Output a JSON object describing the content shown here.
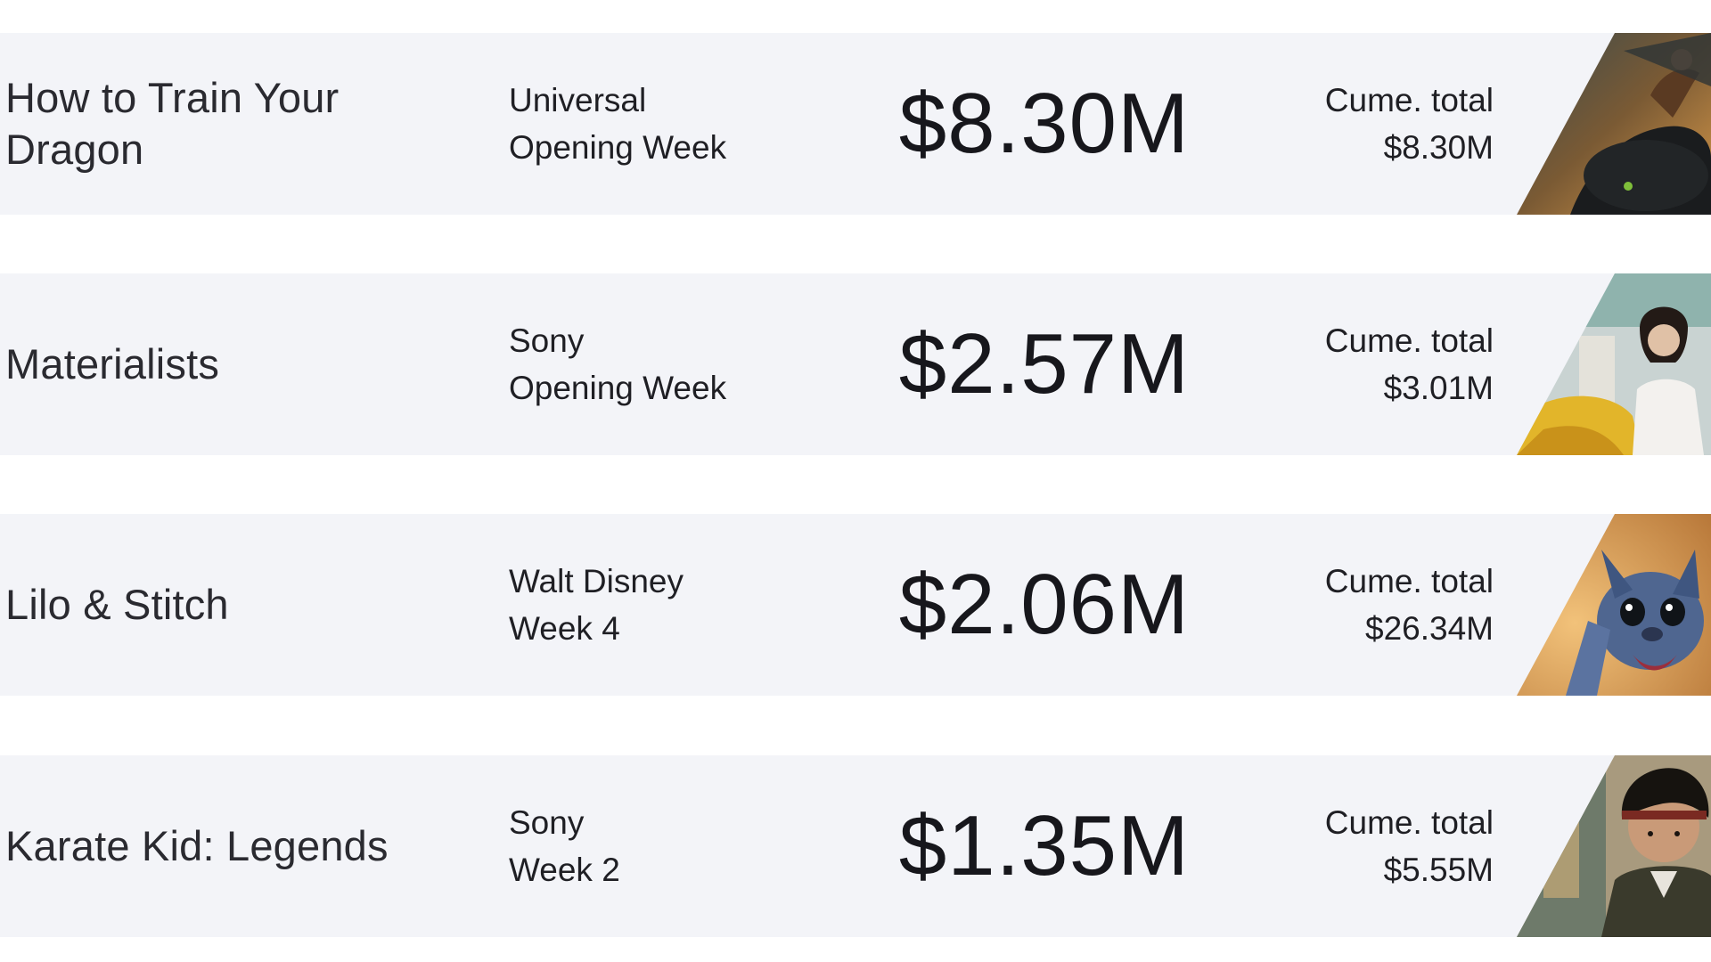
{
  "rows": [
    {
      "title": "How to Train Your Dragon",
      "studio": "Universal",
      "week": "Opening Week",
      "gross": "$8.30M",
      "cume_label": "Cume. total",
      "cume_value": "$8.30M",
      "poster_icon": "dragon-rider-poster"
    },
    {
      "title": "Materialists",
      "studio": "Sony",
      "week": "Opening Week",
      "gross": "$2.57M",
      "cume_label": "Cume. total",
      "cume_value": "$3.01M",
      "poster_icon": "woman-street-poster"
    },
    {
      "title": "Lilo & Stitch",
      "studio": "Walt Disney",
      "week": "Week 4",
      "gross": "$2.06M",
      "cume_label": "Cume. total",
      "cume_value": "$26.34M",
      "poster_icon": "stitch-poster"
    },
    {
      "title": "Karate Kid: Legends",
      "studio": "Sony",
      "week": "Week 2",
      "gross": "$1.35M",
      "cume_label": "Cume. total",
      "cume_value": "$5.55M",
      "poster_icon": "karate-fighter-poster"
    }
  ]
}
